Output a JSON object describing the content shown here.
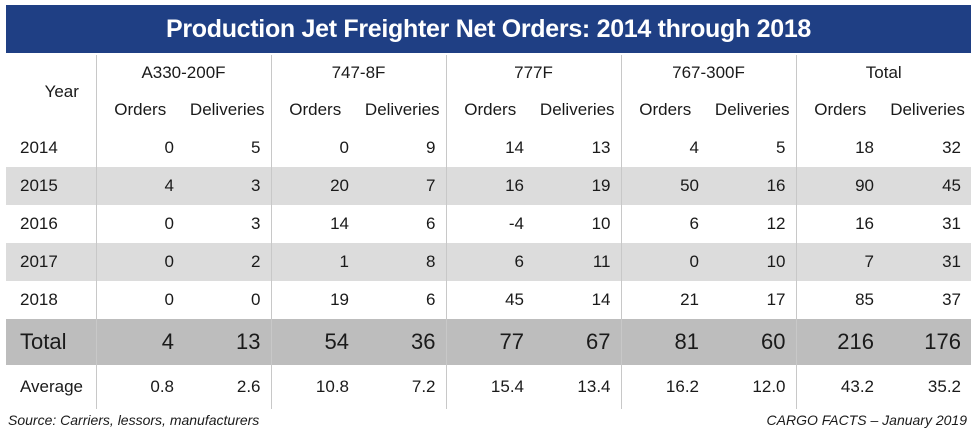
{
  "title": "Production Jet Freighter Net Orders: 2014 through 2018",
  "chart_data": {
    "type": "table",
    "title": "Production Jet Freighter Net Orders: 2014 through 2018",
    "row_header": "Year",
    "groups": [
      "A330-200F",
      "747-8F",
      "777F",
      "767-300F",
      "Total"
    ],
    "subcolumns": [
      "Orders",
      "Deliveries"
    ],
    "rows": [
      {
        "label": "2014",
        "values": [
          "0",
          "5",
          "0",
          "9",
          "14",
          "13",
          "4",
          "5",
          "18",
          "32"
        ]
      },
      {
        "label": "2015",
        "values": [
          "4",
          "3",
          "20",
          "7",
          "16",
          "19",
          "50",
          "16",
          "90",
          "45"
        ]
      },
      {
        "label": "2016",
        "values": [
          "0",
          "3",
          "14",
          "6",
          "-4",
          "10",
          "6",
          "12",
          "16",
          "31"
        ]
      },
      {
        "label": "2017",
        "values": [
          "0",
          "2",
          "1",
          "8",
          "6",
          "11",
          "0",
          "10",
          "7",
          "31"
        ]
      },
      {
        "label": "2018",
        "values": [
          "0",
          "0",
          "19",
          "6",
          "45",
          "14",
          "21",
          "17",
          "85",
          "37"
        ]
      }
    ],
    "total": {
      "label": "Total",
      "values": [
        "4",
        "13",
        "54",
        "36",
        "77",
        "67",
        "81",
        "60",
        "216",
        "176"
      ]
    },
    "average": {
      "label": "Average",
      "values": [
        "0.8",
        "2.6",
        "10.8",
        "7.2",
        "15.4",
        "13.4",
        "16.2",
        "12.0",
        "43.2",
        "35.2"
      ]
    }
  },
  "colors": {
    "title_bar": "#1f3f84",
    "shade_row": "#dcdcdc",
    "total_row": "#bdbdbd"
  },
  "footer": {
    "source": "Source: Carriers, lessors, manufacturers",
    "credit": "CARGO FACTS – January 2019"
  }
}
